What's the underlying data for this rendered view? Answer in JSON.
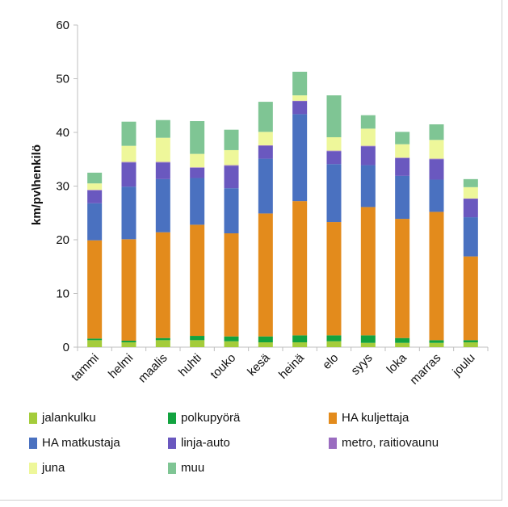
{
  "chart_data": {
    "type": "bar",
    "stacked": true,
    "ylabel": "km/pv\\henkilö",
    "xlabel": "",
    "ylim": [
      0,
      60
    ],
    "yticks": [
      0,
      10,
      20,
      30,
      40,
      50,
      60
    ],
    "grid": false,
    "legend_position": "bottom",
    "categories": [
      "tammi",
      "helmi",
      "maalis",
      "huhti",
      "touko",
      "kesä",
      "heinä",
      "elo",
      "syys",
      "loka",
      "marras",
      "joulu"
    ],
    "series": [
      {
        "name": "jalankulku",
        "color": "#a4cc3b",
        "values": [
          1.3,
          0.9,
          1.3,
          1.3,
          1.1,
          0.9,
          0.9,
          1.1,
          0.8,
          0.8,
          0.8,
          0.9
        ]
      },
      {
        "name": "polkupyörä",
        "color": "#12a33f",
        "values": [
          0.3,
          0.3,
          0.4,
          0.8,
          0.9,
          1.1,
          1.3,
          1.1,
          1.4,
          0.9,
          0.5,
          0.4
        ]
      },
      {
        "name": "HA kuljettaja",
        "color": "#e38b1c",
        "values": [
          18.3,
          18.9,
          19.7,
          20.7,
          19.2,
          22.9,
          25.0,
          21.1,
          23.9,
          22.2,
          23.9,
          15.6
        ]
      },
      {
        "name": "HA matkustaja",
        "color": "#4a71c0",
        "values": [
          6.9,
          9.8,
          9.9,
          8.7,
          8.4,
          10.2,
          16.2,
          10.8,
          7.8,
          8.0,
          6.0,
          7.3
        ]
      },
      {
        "name": "linja-auto",
        "color": "#6a58bf",
        "values": [
          2.4,
          4.5,
          3.1,
          1.9,
          4.2,
          2.4,
          2.4,
          2.4,
          3.5,
          3.3,
          3.8,
          3.4
        ]
      },
      {
        "name": "metro, raitiovaunu",
        "color": "#9a6cc0",
        "values": [
          0.1,
          0.1,
          0.1,
          0.1,
          0.1,
          0.1,
          0.1,
          0.1,
          0.1,
          0.1,
          0.1,
          0.1
        ]
      },
      {
        "name": "juna",
        "color": "#eef79a",
        "values": [
          1.2,
          3.0,
          4.5,
          2.5,
          2.8,
          2.5,
          1.0,
          2.5,
          3.2,
          2.5,
          3.5,
          2.1
        ]
      },
      {
        "name": "muu",
        "color": "#7fc594",
        "values": [
          2.0,
          4.5,
          3.3,
          6.1,
          3.8,
          5.6,
          4.4,
          7.8,
          2.5,
          2.3,
          2.9,
          1.5
        ]
      }
    ]
  }
}
